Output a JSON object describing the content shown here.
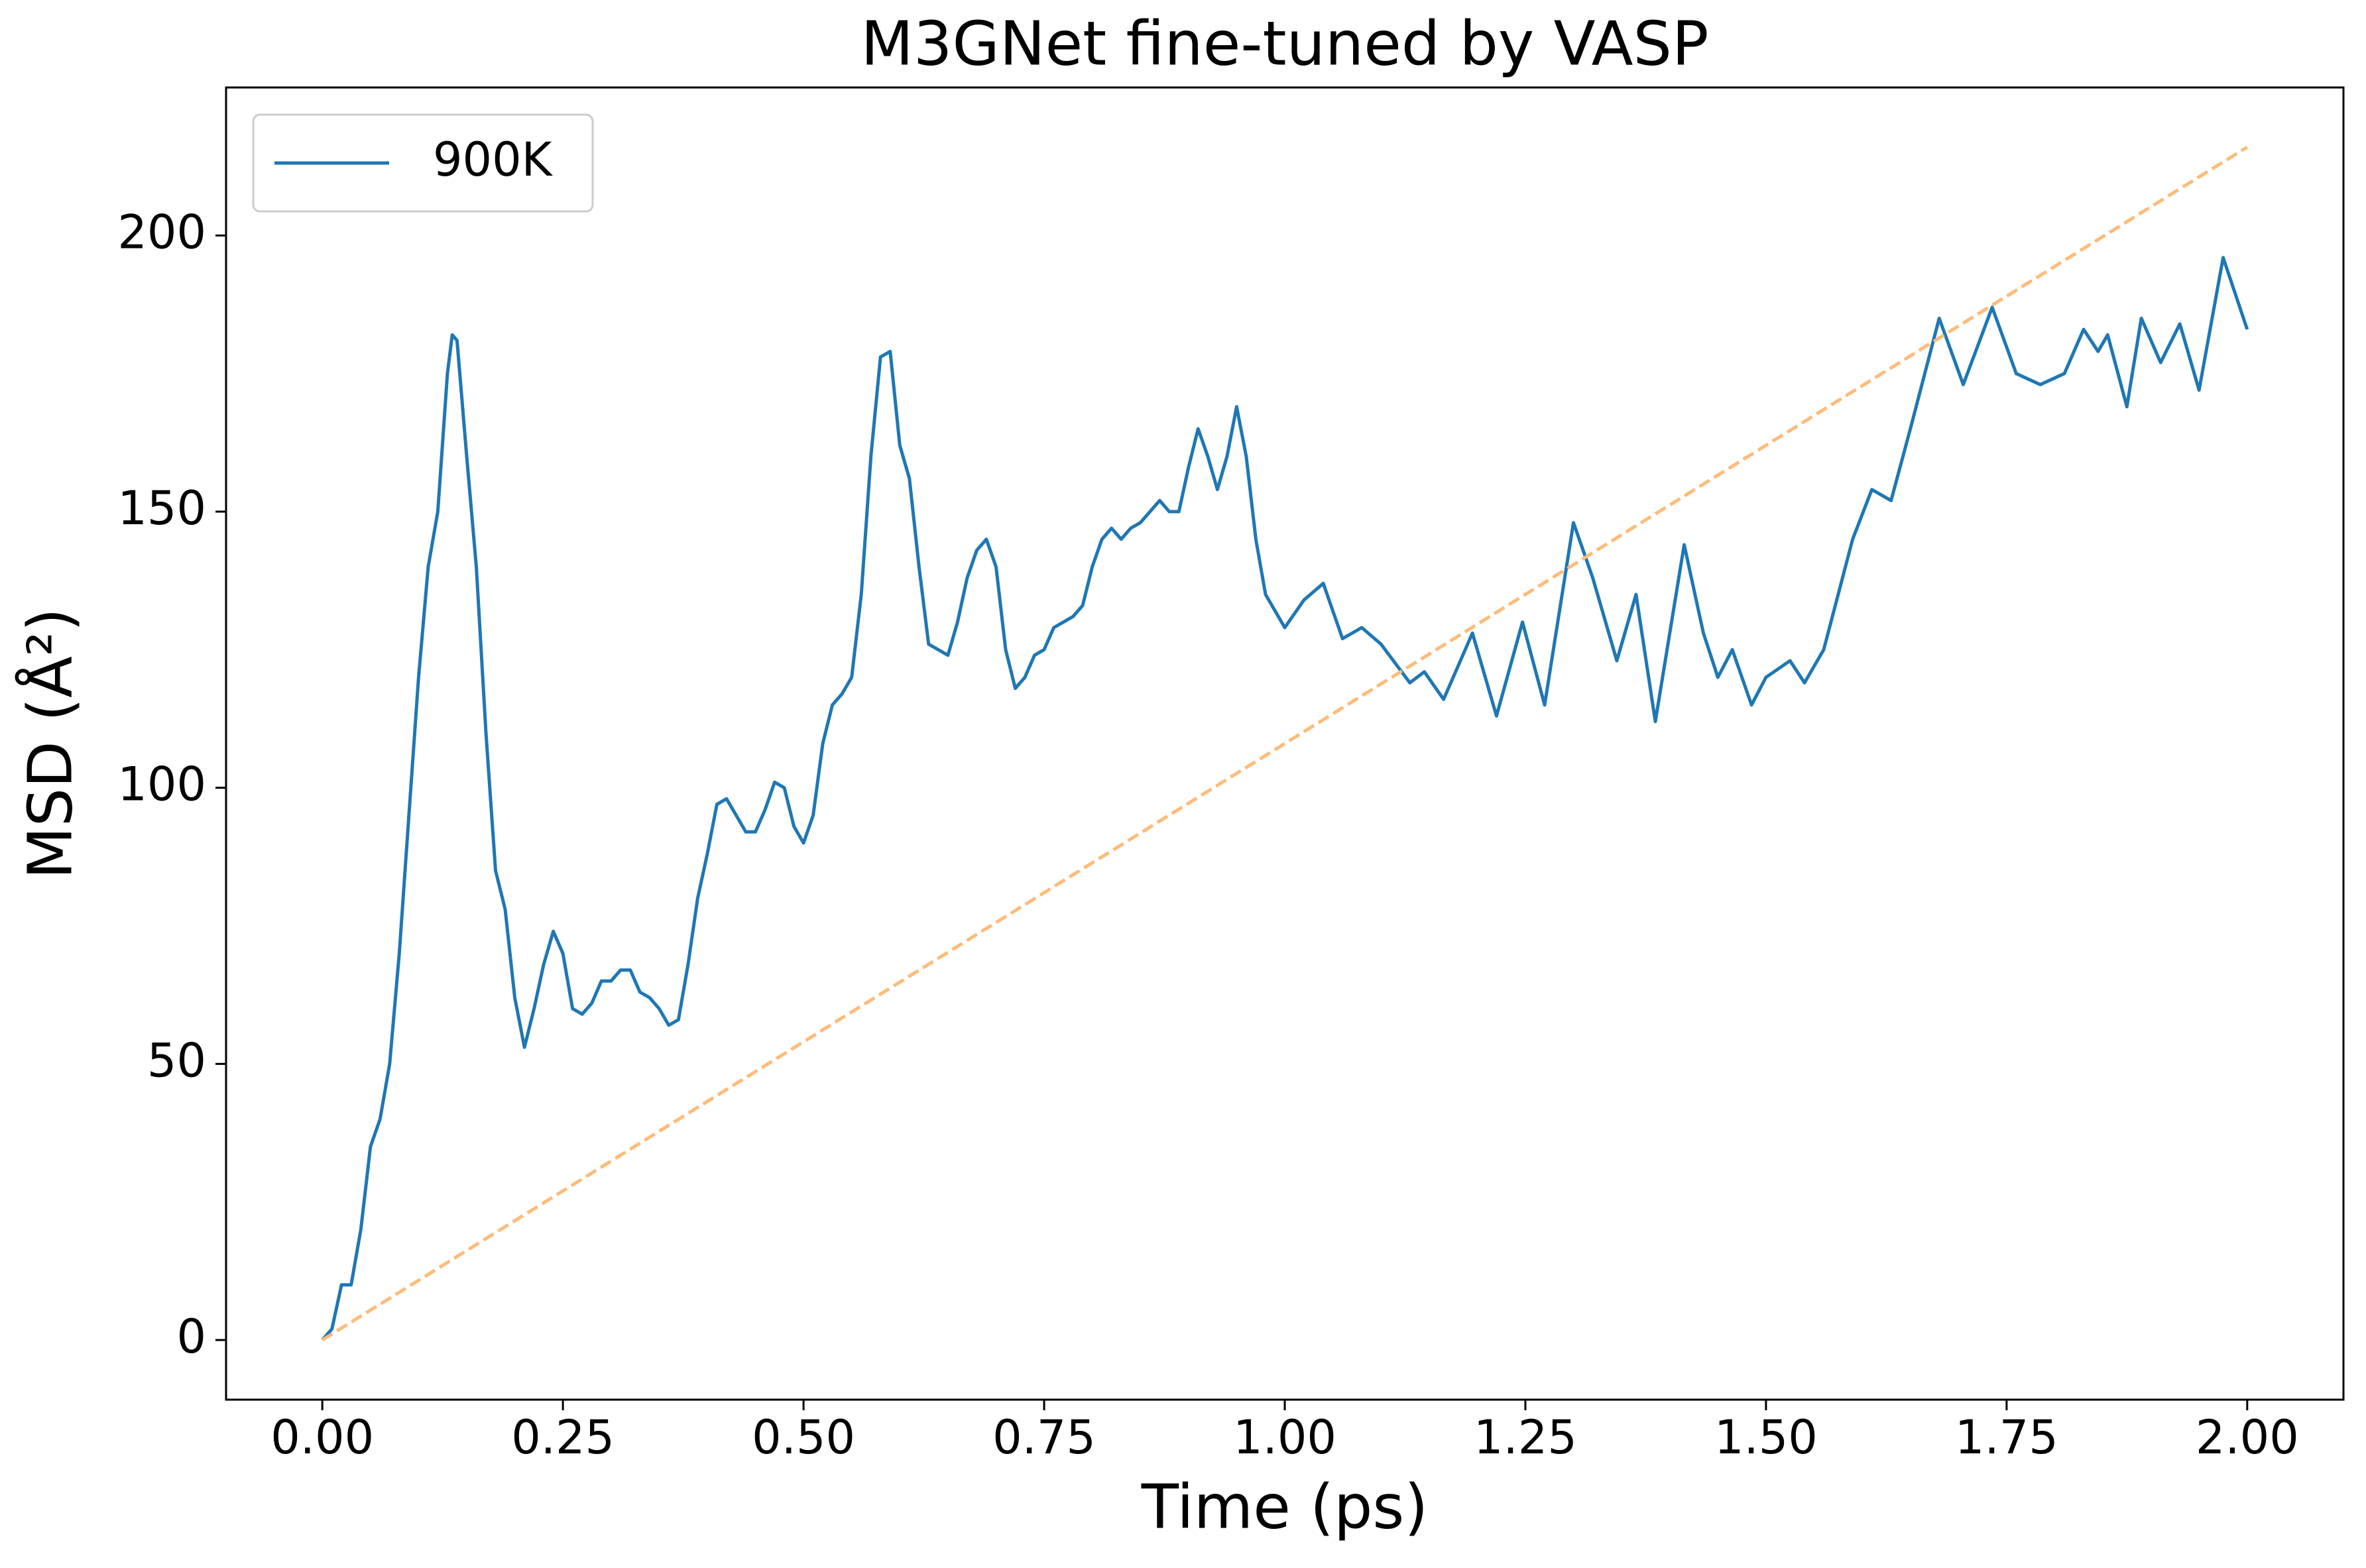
{
  "chart_data": {
    "type": "line",
    "title": "M3GNet fine-tuned by VASP",
    "x_label": "Time (ps)",
    "y_label": "MSD (Å²)",
    "xlim": [
      -0.1,
      2.1
    ],
    "ylim": [
      -10.8,
      226.8
    ],
    "xticks": [
      {
        "value": 0,
        "label": "0.00"
      },
      {
        "value": 0.25,
        "label": "0.25"
      },
      {
        "value": 0.5,
        "label": "0.50"
      },
      {
        "value": 0.75,
        "label": "0.75"
      },
      {
        "value": 1,
        "label": "1.00"
      },
      {
        "value": 1.25,
        "label": "1.25"
      },
      {
        "value": 1.5,
        "label": "1.50"
      },
      {
        "value": 1.75,
        "label": "1.75"
      },
      {
        "value": 2,
        "label": "2.00"
      }
    ],
    "yticks": [
      0,
      50,
      100,
      150,
      200
    ],
    "grid": false,
    "legend": "upper left",
    "series": [
      {
        "name": "900K",
        "color": "#1f77b4",
        "dash": false,
        "x": [
          0,
          0.01,
          0.02,
          0.03,
          0.04,
          0.05,
          0.06,
          0.07,
          0.08,
          0.09,
          0.1,
          0.11,
          0.12,
          0.13,
          0.135,
          0.14,
          0.15,
          0.16,
          0.17,
          0.18,
          0.19,
          0.2,
          0.21,
          0.22,
          0.23,
          0.24,
          0.25,
          0.26,
          0.27,
          0.28,
          0.29,
          0.3,
          0.31,
          0.32,
          0.33,
          0.34,
          0.35,
          0.36,
          0.37,
          0.38,
          0.39,
          0.4,
          0.41,
          0.42,
          0.43,
          0.44,
          0.45,
          0.46,
          0.47,
          0.48,
          0.49,
          0.5,
          0.51,
          0.52,
          0.53,
          0.54,
          0.55,
          0.56,
          0.57,
          0.58,
          0.59,
          0.6,
          0.61,
          0.62,
          0.63,
          0.64,
          0.65,
          0.66,
          0.67,
          0.68,
          0.69,
          0.7,
          0.71,
          0.72,
          0.73,
          0.74,
          0.75,
          0.76,
          0.77,
          0.78,
          0.79,
          0.8,
          0.81,
          0.82,
          0.83,
          0.84,
          0.85,
          0.86,
          0.87,
          0.88,
          0.89,
          0.9,
          0.91,
          0.92,
          0.93,
          0.94,
          0.95,
          0.96,
          0.97,
          0.98,
          0.99,
          1.0,
          1.02,
          1.04,
          1.06,
          1.08,
          1.1,
          1.13,
          1.145,
          1.165,
          1.195,
          1.22,
          1.247,
          1.27,
          1.3,
          1.32,
          1.345,
          1.365,
          1.385,
          1.415,
          1.435,
          1.45,
          1.465,
          1.485,
          1.5,
          1.525,
          1.54,
          1.56,
          1.59,
          1.61,
          1.63,
          1.65,
          1.68,
          1.705,
          1.735,
          1.76,
          1.785,
          1.81,
          1.83,
          1.845,
          1.855,
          1.875,
          1.89,
          1.91,
          1.93,
          1.95,
          1.975,
          2.0
        ],
        "values": [
          0,
          2,
          10,
          10,
          20,
          35,
          40,
          50,
          70,
          95,
          120,
          140,
          150,
          175,
          182,
          181,
          160,
          140,
          110,
          85,
          78,
          62,
          53,
          60,
          68,
          74,
          70,
          60,
          59,
          61,
          65,
          65,
          67,
          67,
          63,
          62,
          60,
          57,
          58,
          68,
          80,
          88,
          97,
          98,
          95,
          92,
          92,
          96,
          101,
          100,
          93,
          90,
          95,
          108,
          115,
          117,
          120,
          135,
          160,
          178,
          179,
          162,
          156,
          140,
          126,
          125,
          124,
          130,
          138,
          143,
          145,
          140,
          125,
          118,
          120,
          124,
          125,
          129,
          130,
          131,
          133,
          140,
          145,
          147,
          145,
          147,
          148,
          150,
          152,
          150,
          150,
          158,
          165,
          160,
          154,
          160,
          169,
          160,
          145,
          135,
          132,
          129,
          134,
          137,
          127,
          129,
          126,
          119,
          121,
          116,
          128,
          113,
          130,
          115,
          148,
          138,
          123,
          135,
          112,
          144,
          128,
          120,
          125,
          115,
          120,
          123,
          119,
          125,
          145,
          154,
          152,
          165,
          185,
          173,
          187,
          175,
          173,
          175,
          183,
          179,
          182,
          169,
          185,
          177,
          184,
          172,
          196,
          183
        ]
      },
      {
        "color": "#ffbb78",
        "dash": true,
        "x": [
          0,
          2
        ],
        "values": [
          0,
          216
        ]
      }
    ]
  }
}
